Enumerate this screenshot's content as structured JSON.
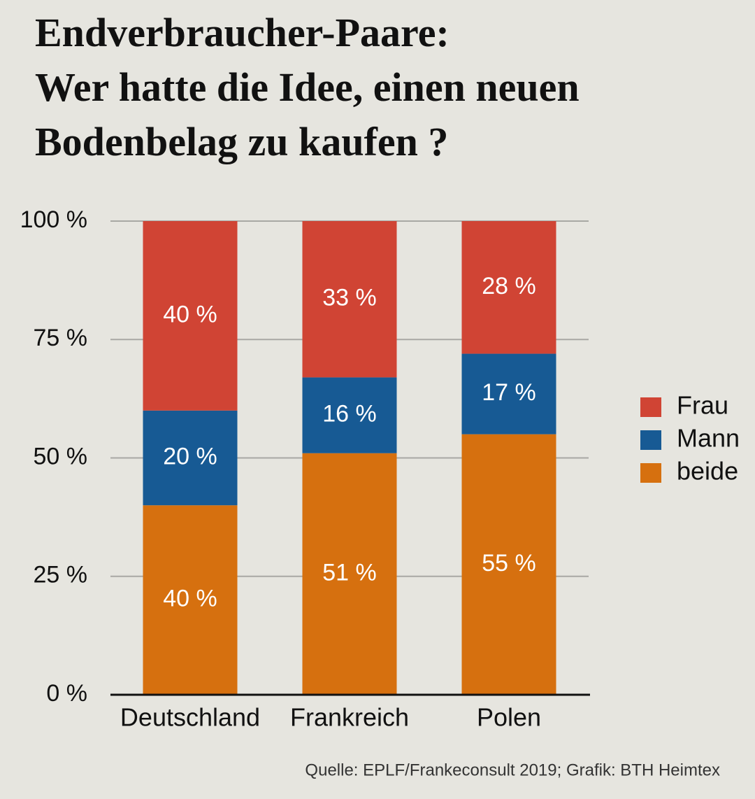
{
  "chart_data": {
    "type": "stacked-bar",
    "title": [
      "Endverbraucher-Paare:",
      "Wer hatte die Idee, einen neuen",
      "Bodenbelag zu kaufen ?"
    ],
    "categories": [
      "Deutschland",
      "Frankreich",
      "Polen"
    ],
    "series": [
      {
        "name": "Frau",
        "color": "#d04434",
        "values": [
          40,
          33,
          28
        ],
        "value_labels": [
          "40 %",
          "33 %",
          "28 %"
        ]
      },
      {
        "name": "Mann",
        "color": "#175a94",
        "values": [
          20,
          16,
          17
        ],
        "value_labels": [
          "20 %",
          "16 %",
          "17 %"
        ]
      },
      {
        "name": "beide",
        "color": "#d6700f",
        "values": [
          40,
          51,
          55
        ],
        "value_labels": [
          "40 %",
          "51 %",
          "55 %"
        ]
      }
    ],
    "ylim": [
      0,
      100
    ],
    "yticks": [
      {
        "value": 0,
        "label": "0 %"
      },
      {
        "value": 25,
        "label": "25 %"
      },
      {
        "value": 50,
        "label": "50 %"
      },
      {
        "value": 75,
        "label": "75 %"
      },
      {
        "value": 100,
        "label": "100 %"
      }
    ],
    "grid": true,
    "legend": "right",
    "source": "Quelle: EPLF/Frankeconsult 2019; Grafik: BTH Heimtex"
  }
}
